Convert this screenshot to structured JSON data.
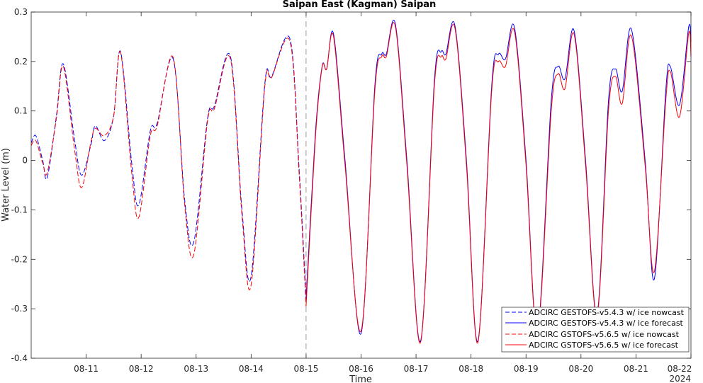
{
  "chart_data": {
    "type": "line",
    "title": "Saipan East (Kagman) Saipan",
    "xlabel": "Time",
    "ylabel": "Water Level (m)",
    "year_label": "2024",
    "xlim": [
      "2024-08-10 00:00",
      "2024-08-22 00:00"
    ],
    "ylim": [
      -0.4,
      0.3
    ],
    "y_ticks": [
      -0.4,
      -0.3,
      -0.2,
      -0.1,
      0,
      0.1,
      0.2,
      0.3
    ],
    "y_tick_labels": [
      "-0.4",
      "-0.3",
      "-0.2",
      "-0.1",
      "0",
      "0.1",
      "0.2",
      "0.3"
    ],
    "x_ticks": [
      "2024-08-11",
      "2024-08-12",
      "2024-08-13",
      "2024-08-14",
      "2024-08-15",
      "2024-08-16",
      "2024-08-17",
      "2024-08-18",
      "2024-08-19",
      "2024-08-20",
      "2024-08-21",
      "2024-08-22"
    ],
    "x_tick_labels": [
      "08-11",
      "08-12",
      "08-13",
      "08-14",
      "08-15",
      "08-16",
      "08-17",
      "08-18",
      "08-19",
      "08-20",
      "08-21",
      "08-22"
    ],
    "grid": false,
    "nowcast_forecast_divider": "2024-08-15 00:00",
    "legend_position": "bottom-right",
    "series": [
      {
        "name": "ADCIRC GESTOFS-v5.4.3 w/ ice nowcast",
        "color": "#0000ff",
        "dash": "dashed",
        "points": [
          [
            "2024-08-10 00:00",
            0.035
          ],
          [
            "2024-08-10 02:00",
            0.05
          ],
          [
            "2024-08-10 05:00",
            0.0
          ],
          [
            "2024-08-10 07:00",
            -0.035
          ],
          [
            "2024-08-10 11:00",
            0.09
          ],
          [
            "2024-08-10 14:00",
            0.195
          ],
          [
            "2024-08-10 19:00",
            0.04
          ],
          [
            "2024-08-10 22:00",
            -0.03
          ],
          [
            "2024-08-11 02:00",
            0.03
          ],
          [
            "2024-08-11 04:00",
            0.07
          ],
          [
            "2024-08-11 08:00",
            0.04
          ],
          [
            "2024-08-11 12:00",
            0.09
          ],
          [
            "2024-08-11 15:00",
            0.22
          ],
          [
            "2024-08-11 20:00",
            -0.01
          ],
          [
            "2024-08-11 23:00",
            -0.09
          ],
          [
            "2024-08-12 04:00",
            0.06
          ],
          [
            "2024-08-12 07:00",
            0.075
          ],
          [
            "2024-08-12 14:00",
            0.205
          ],
          [
            "2024-08-12 19:00",
            -0.08
          ],
          [
            "2024-08-12 23:00",
            -0.165
          ],
          [
            "2024-08-13 05:00",
            0.085
          ],
          [
            "2024-08-13 08:00",
            0.11
          ],
          [
            "2024-08-13 15:00",
            0.21
          ],
          [
            "2024-08-13 20:00",
            -0.1
          ],
          [
            "2024-08-14 00:00",
            -0.235
          ],
          [
            "2024-08-14 06:00",
            0.155
          ],
          [
            "2024-08-14 09:00",
            0.17
          ],
          [
            "2024-08-14 17:00",
            0.245
          ],
          [
            "2024-08-14 21:00",
            -0.02
          ],
          [
            "2024-08-15 00:00",
            -0.28
          ]
        ]
      },
      {
        "name": "ADCIRC GESTOFS-v5.4.3 w/ ice forecast",
        "color": "#0000ff",
        "dash": "solid",
        "points": [
          [
            "2024-08-15 00:00",
            -0.28
          ],
          [
            "2024-08-15 04:00",
            0.05
          ],
          [
            "2024-08-15 07:00",
            0.19
          ],
          [
            "2024-08-15 09:00",
            0.185
          ],
          [
            "2024-08-15 12:00",
            0.255
          ],
          [
            "2024-08-15 17:00",
            0.0
          ],
          [
            "2024-08-16 00:00",
            -0.35
          ],
          [
            "2024-08-16 06:00",
            0.15
          ],
          [
            "2024-08-16 09:00",
            0.215
          ],
          [
            "2024-08-16 11:00",
            0.215
          ],
          [
            "2024-08-16 15:00",
            0.275
          ],
          [
            "2024-08-16 20:00",
            0.0
          ],
          [
            "2024-08-17 02:00",
            -0.365
          ],
          [
            "2024-08-17 08:00",
            0.16
          ],
          [
            "2024-08-17 11:00",
            0.22
          ],
          [
            "2024-08-17 13:00",
            0.215
          ],
          [
            "2024-08-17 17:00",
            0.272
          ],
          [
            "2024-08-17 22:00",
            0.0
          ],
          [
            "2024-08-18 03:00",
            -0.365
          ],
          [
            "2024-08-18 09:00",
            0.15
          ],
          [
            "2024-08-18 12:00",
            0.215
          ],
          [
            "2024-08-18 15:00",
            0.205
          ],
          [
            "2024-08-18 19:00",
            0.268
          ],
          [
            "2024-08-19 00:00",
            0.0
          ],
          [
            "2024-08-19 05:00",
            -0.345
          ],
          [
            "2024-08-19 11:00",
            0.12
          ],
          [
            "2024-08-19 14:00",
            0.19
          ],
          [
            "2024-08-19 17:00",
            0.165
          ],
          [
            "2024-08-19 21:00",
            0.262
          ],
          [
            "2024-08-20 02:00",
            0.0
          ],
          [
            "2024-08-20 07:00",
            -0.31
          ],
          [
            "2024-08-20 12:00",
            0.12
          ],
          [
            "2024-08-20 15:00",
            0.185
          ],
          [
            "2024-08-20 18:00",
            0.14
          ],
          [
            "2024-08-20 22:00",
            0.265
          ],
          [
            "2024-08-21 04:00",
            0.0
          ],
          [
            "2024-08-21 08:00",
            -0.24
          ],
          [
            "2024-08-21 13:00",
            0.14
          ],
          [
            "2024-08-21 15:00",
            0.19
          ],
          [
            "2024-08-21 19:00",
            0.112
          ],
          [
            "2024-08-21 23:00",
            0.27
          ],
          [
            "2024-08-22 00:00",
            0.24
          ]
        ]
      },
      {
        "name": "ADCIRC GSTOFS-v5.6.5 w/ ice nowcast",
        "color": "#ff0000",
        "dash": "dashed",
        "points": [
          [
            "2024-08-10 00:00",
            0.03
          ],
          [
            "2024-08-10 02:00",
            0.04
          ],
          [
            "2024-08-10 05:00",
            -0.005
          ],
          [
            "2024-08-10 07:00",
            -0.025
          ],
          [
            "2024-08-10 11:00",
            0.085
          ],
          [
            "2024-08-10 14:00",
            0.19
          ],
          [
            "2024-08-10 19:00",
            0.02
          ],
          [
            "2024-08-10 22:00",
            -0.055
          ],
          [
            "2024-08-11 02:00",
            0.035
          ],
          [
            "2024-08-11 04:00",
            0.065
          ],
          [
            "2024-08-11 08:00",
            0.05
          ],
          [
            "2024-08-11 12:00",
            0.09
          ],
          [
            "2024-08-11 15:00",
            0.218
          ],
          [
            "2024-08-11 20:00",
            -0.03
          ],
          [
            "2024-08-11 23:00",
            -0.115
          ],
          [
            "2024-08-12 04:00",
            0.05
          ],
          [
            "2024-08-12 07:00",
            0.07
          ],
          [
            "2024-08-12 14:00",
            0.208
          ],
          [
            "2024-08-12 19:00",
            -0.09
          ],
          [
            "2024-08-12 23:00",
            -0.19
          ],
          [
            "2024-08-13 05:00",
            0.08
          ],
          [
            "2024-08-13 08:00",
            0.105
          ],
          [
            "2024-08-13 15:00",
            0.205
          ],
          [
            "2024-08-13 20:00",
            -0.11
          ],
          [
            "2024-08-14 00:00",
            -0.252
          ],
          [
            "2024-08-14 06:00",
            0.15
          ],
          [
            "2024-08-14 09:00",
            0.168
          ],
          [
            "2024-08-14 17:00",
            0.24
          ],
          [
            "2024-08-14 21:00",
            -0.03
          ],
          [
            "2024-08-15 00:00",
            -0.295
          ]
        ]
      },
      {
        "name": "ADCIRC GSTOFS-v5.6.5 w/ ice forecast",
        "color": "#ff0000",
        "dash": "solid",
        "points": [
          [
            "2024-08-15 00:00",
            -0.295
          ],
          [
            "2024-08-15 04:00",
            0.04
          ],
          [
            "2024-08-15 07:00",
            0.188
          ],
          [
            "2024-08-15 09:00",
            0.185
          ],
          [
            "2024-08-15 12:00",
            0.25
          ],
          [
            "2024-08-15 17:00",
            -0.01
          ],
          [
            "2024-08-16 00:00",
            -0.345
          ],
          [
            "2024-08-16 06:00",
            0.14
          ],
          [
            "2024-08-16 09:00",
            0.21
          ],
          [
            "2024-08-16 11:00",
            0.21
          ],
          [
            "2024-08-16 15:00",
            0.27
          ],
          [
            "2024-08-16 20:00",
            -0.01
          ],
          [
            "2024-08-17 02:00",
            -0.368
          ],
          [
            "2024-08-17 08:00",
            0.15
          ],
          [
            "2024-08-17 11:00",
            0.21
          ],
          [
            "2024-08-17 13:00",
            0.205
          ],
          [
            "2024-08-17 17:00",
            0.267
          ],
          [
            "2024-08-17 22:00",
            -0.01
          ],
          [
            "2024-08-18 03:00",
            -0.368
          ],
          [
            "2024-08-18 09:00",
            0.14
          ],
          [
            "2024-08-18 12:00",
            0.2
          ],
          [
            "2024-08-18 15:00",
            0.19
          ],
          [
            "2024-08-18 19:00",
            0.26
          ],
          [
            "2024-08-19 00:00",
            -0.01
          ],
          [
            "2024-08-19 05:00",
            -0.35
          ],
          [
            "2024-08-19 11:00",
            0.1
          ],
          [
            "2024-08-19 14:00",
            0.175
          ],
          [
            "2024-08-19 17:00",
            0.145
          ],
          [
            "2024-08-19 21:00",
            0.255
          ],
          [
            "2024-08-20 02:00",
            -0.01
          ],
          [
            "2024-08-20 07:00",
            -0.315
          ],
          [
            "2024-08-20 12:00",
            0.1
          ],
          [
            "2024-08-20 15:00",
            0.17
          ],
          [
            "2024-08-20 18:00",
            0.115
          ],
          [
            "2024-08-20 22:00",
            0.252
          ],
          [
            "2024-08-21 04:00",
            -0.01
          ],
          [
            "2024-08-21 08:00",
            -0.225
          ],
          [
            "2024-08-21 13:00",
            0.12
          ],
          [
            "2024-08-21 15:00",
            0.18
          ],
          [
            "2024-08-21 19:00",
            0.088
          ],
          [
            "2024-08-21 23:00",
            0.257
          ],
          [
            "2024-08-22 00:00",
            0.21
          ]
        ]
      }
    ]
  }
}
